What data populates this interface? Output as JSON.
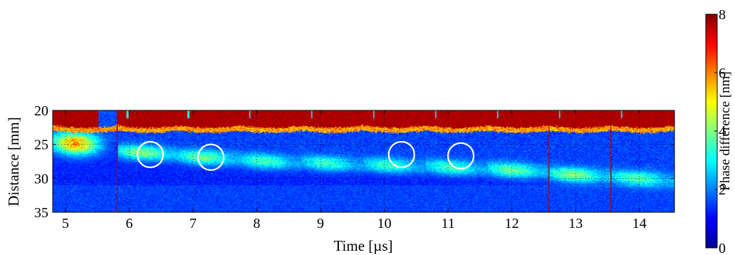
{
  "chart_data": {
    "type": "heatmap",
    "title": "",
    "xlabel": "Time [µs]",
    "ylabel": "Distance [mm]",
    "xlim": [
      4.8,
      14.55
    ],
    "ylim": [
      20,
      35
    ],
    "y_inverted": true,
    "grid": true,
    "x_ticks": [
      "5",
      "6",
      "7",
      "8",
      "9",
      "10",
      "11",
      "12",
      "13",
      "14"
    ],
    "y_ticks": [
      "20",
      "25",
      "30",
      "35"
    ],
    "colorbar": {
      "label": "Phase difference [nm]",
      "range": [
        0,
        8
      ],
      "ticks": [
        "0",
        "2",
        "4",
        "6",
        "8"
      ],
      "colormap": "jet"
    },
    "frames": [
      {
        "t_start": 4.8,
        "front_depth": 25.0,
        "front_strength": 0.55
      },
      {
        "t_start": 5.81,
        "front_depth": 26.3,
        "front_strength": 0.35
      },
      {
        "t_start": 6.76,
        "front_depth": 27.0,
        "front_strength": 0.32
      },
      {
        "t_start": 7.73,
        "front_depth": 27.6,
        "front_strength": 0.28
      },
      {
        "t_start": 8.7,
        "front_depth": 27.9,
        "front_strength": 0.27
      },
      {
        "t_start": 9.67,
        "front_depth": 28.2,
        "front_strength": 0.27
      },
      {
        "t_start": 10.64,
        "front_depth": 28.5,
        "front_strength": 0.28
      },
      {
        "t_start": 11.61,
        "front_depth": 28.9,
        "front_strength": 0.32
      },
      {
        "t_start": 12.58,
        "front_depth": 29.6,
        "front_strength": 0.35
      },
      {
        "t_start": 13.55,
        "front_depth": 30.1,
        "front_strength": 0.3
      }
    ],
    "circled_features": [
      {
        "time": 6.33,
        "distance": 26.5
      },
      {
        "time": 7.28,
        "distance": 26.9
      },
      {
        "time": 10.27,
        "distance": 26.5
      },
      {
        "time": 11.2,
        "distance": 26.7
      }
    ]
  }
}
